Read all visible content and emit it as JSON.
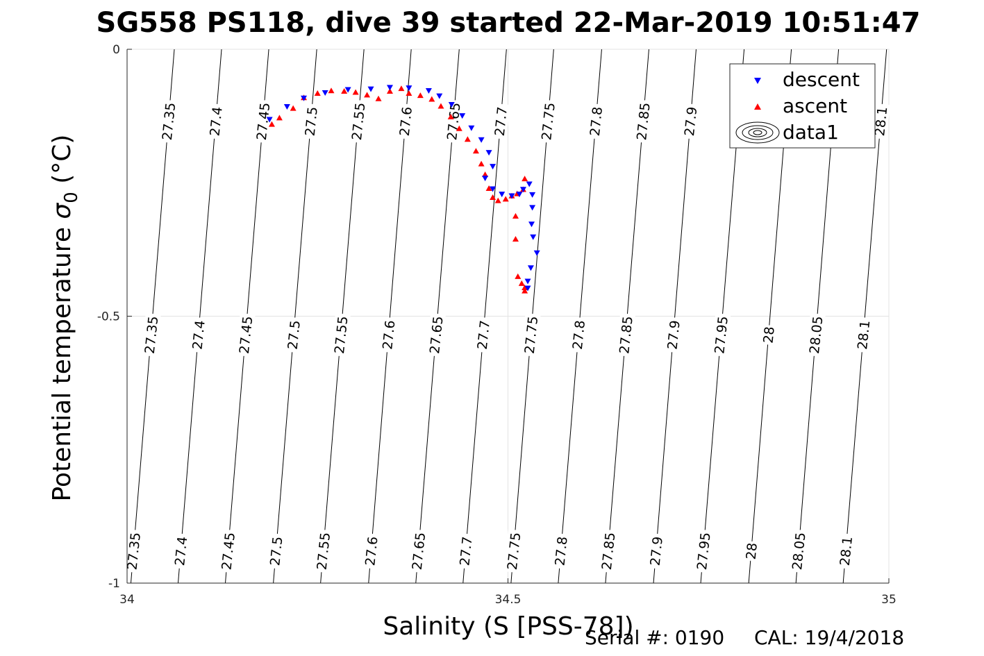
{
  "chart_data": {
    "type": "scatter",
    "title": "SG558 PS118, dive 39 started 22-Mar-2019 10:51:47",
    "xlabel": "Salinity (S [PSS-78])",
    "ylabel_main": "Potential temperature ",
    "ylabel_sym": "σ",
    "ylabel_sub": "0",
    "ylabel_unit": " (°C)",
    "xlim": [
      34,
      35
    ],
    "ylim": [
      -1,
      0
    ],
    "xticks": [
      34,
      34.5,
      35
    ],
    "xtick_labels": [
      "34",
      "34.5",
      "35"
    ],
    "yticks": [
      0,
      -0.5,
      -1
    ],
    "ytick_labels": [
      "0",
      "-0.5",
      "-1"
    ],
    "grid": true,
    "legend_position": "top-right",
    "legend": [
      {
        "label": "descent",
        "color": "#0000ff",
        "marker": "triangle-down"
      },
      {
        "label": "ascent",
        "color": "#ff0000",
        "marker": "triangle-up"
      },
      {
        "label": "data1",
        "color": "#000000",
        "marker": "contour"
      }
    ],
    "isopycnals": {
      "levels": [
        27.35,
        27.4,
        27.45,
        27.5,
        27.55,
        27.6,
        27.65,
        27.7,
        27.75,
        27.8,
        27.85,
        27.9,
        27.95,
        28,
        28.05,
        28.1
      ],
      "labels": [
        "27.35",
        "27.4",
        "27.45",
        "27.5",
        "27.55",
        "27.6",
        "27.65",
        "27.7",
        "27.75",
        "27.8",
        "27.85",
        "27.9",
        "27.95",
        "28",
        "28.05",
        "28.1"
      ],
      "salinity_at_bottom": [
        34.005,
        34.067,
        34.129,
        34.192,
        34.254,
        34.317,
        34.379,
        34.441,
        34.504,
        34.566,
        34.628,
        34.691,
        34.753,
        34.816,
        34.878,
        34.94
      ],
      "salinity_at_top": [
        34.062,
        34.124,
        34.186,
        34.249,
        34.311,
        34.373,
        34.436,
        34.498,
        34.56,
        34.623,
        34.685,
        34.747,
        34.81,
        34.872,
        34.934,
        34.997
      ],
      "label_rows_temperature": [
        -0.94,
        -0.535,
        -0.135
      ],
      "upper_row_levels": [
        27.35,
        27.4,
        27.45,
        27.5,
        27.55,
        27.6,
        27.65,
        27.7,
        27.75,
        27.8,
        27.85,
        27.9,
        28.1
      ]
    },
    "series": [
      {
        "name": "descent",
        "color": "#0000ff",
        "marker": "triangle-down",
        "x": [
          34.187,
          34.21,
          34.232,
          34.26,
          34.29,
          34.32,
          34.345,
          34.37,
          34.396,
          34.41,
          34.426,
          34.44,
          34.452,
          34.465,
          34.475,
          34.48,
          34.47,
          34.48,
          34.492,
          34.505,
          34.515,
          34.52,
          34.528,
          34.532,
          34.532,
          34.531,
          34.533,
          34.538,
          34.53,
          34.526,
          34.526
        ],
        "y": [
          -0.132,
          -0.108,
          -0.092,
          -0.082,
          -0.076,
          -0.075,
          -0.072,
          -0.073,
          -0.078,
          -0.088,
          -0.104,
          -0.125,
          -0.148,
          -0.17,
          -0.194,
          -0.22,
          -0.242,
          -0.262,
          -0.272,
          -0.275,
          -0.272,
          -0.263,
          -0.253,
          -0.273,
          -0.297,
          -0.328,
          -0.352,
          -0.382,
          -0.41,
          -0.435,
          -0.448
        ]
      },
      {
        "name": "ascent",
        "color": "#ff0000",
        "marker": "triangle-up",
        "x": [
          34.19,
          34.2,
          34.218,
          34.232,
          34.25,
          34.268,
          34.285,
          34.3,
          34.315,
          34.33,
          34.345,
          34.36,
          34.37,
          34.385,
          34.4,
          34.412,
          34.425,
          34.436,
          34.447,
          34.458,
          34.465,
          34.47,
          34.475,
          34.48,
          34.487,
          34.497,
          34.505,
          34.512,
          34.52,
          34.522,
          34.51,
          34.51,
          34.513,
          34.518,
          34.522,
          34.522
        ],
        "y": [
          -0.14,
          -0.128,
          -0.11,
          -0.09,
          -0.082,
          -0.077,
          -0.078,
          -0.08,
          -0.085,
          -0.092,
          -0.078,
          -0.073,
          -0.082,
          -0.086,
          -0.093,
          -0.106,
          -0.126,
          -0.148,
          -0.168,
          -0.19,
          -0.214,
          -0.234,
          -0.26,
          -0.277,
          -0.283,
          -0.28,
          -0.274,
          -0.27,
          -0.262,
          -0.242,
          -0.312,
          -0.355,
          -0.425,
          -0.438,
          -0.446,
          -0.452
        ]
      }
    ]
  },
  "footer": {
    "serial_label": "Serial #: 0190",
    "cal_label": "CAL: 19/4/2018"
  }
}
